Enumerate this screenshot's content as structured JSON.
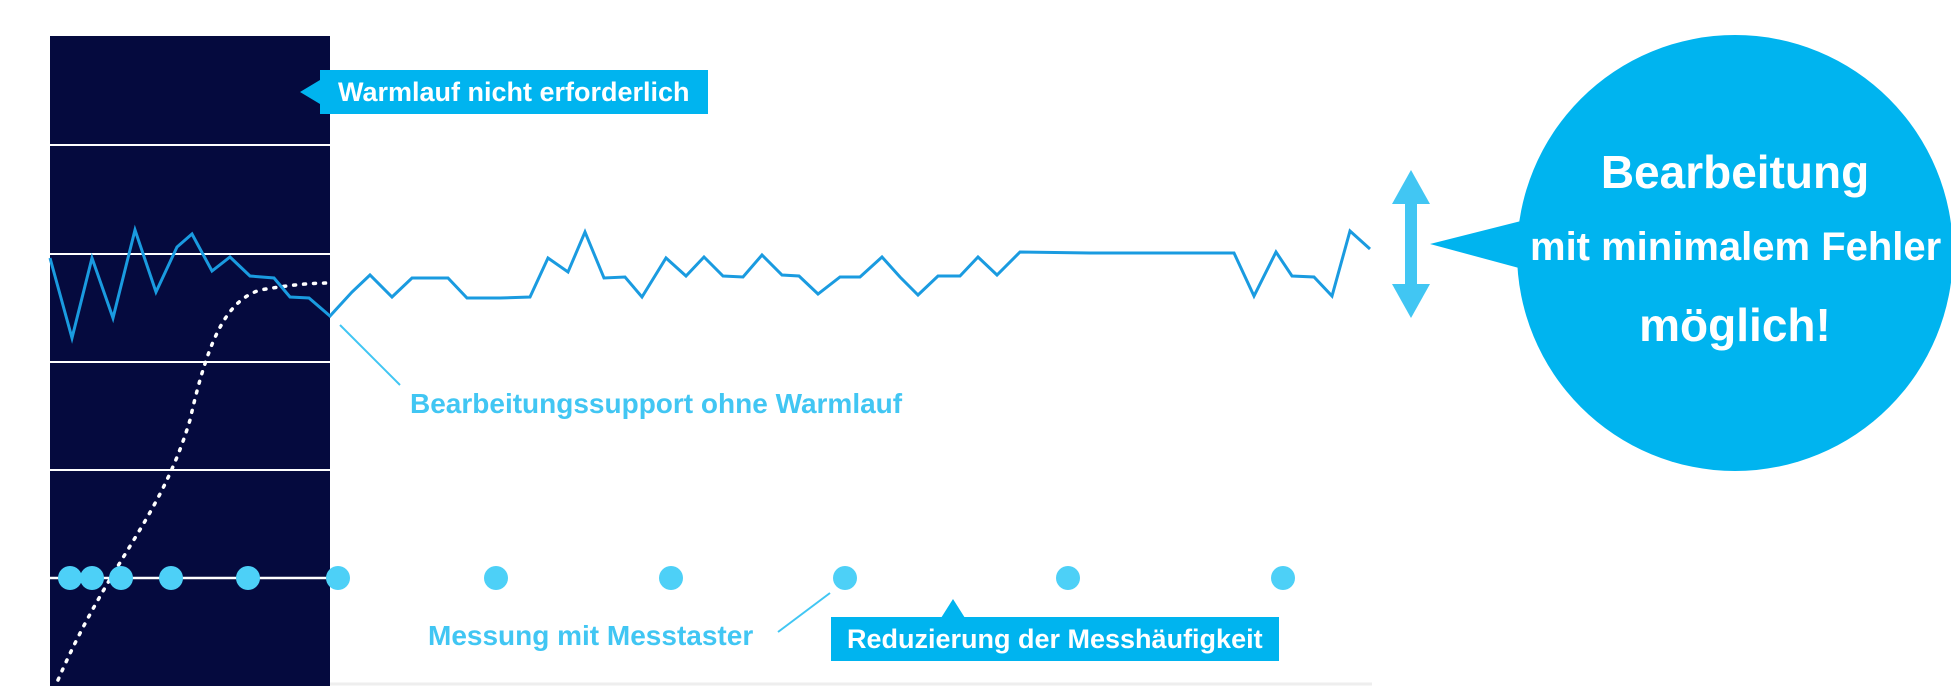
{
  "labels": {
    "warmup_not_required": "Warmlauf nicht erforderlich",
    "support_without_warmup": "Bearbeitungssupport ohne Warmlauf",
    "measurement_probe": "Messung mit Messtaster",
    "reduced_frequency": "Reduzierung der Messhäufigkeit"
  },
  "bubble": {
    "line1": "Bearbeitung",
    "line2": "mit minimalem Fehler",
    "line3": "möglich!"
  },
  "colors": {
    "dark_panel": "#050a3e",
    "accent": "#00b4ef",
    "line": "#1a9be0",
    "dot": "#4dd0f7",
    "caption": "#41c6f3",
    "white": "#ffffff"
  },
  "icons": {
    "arrow": "double-headed-vertical-arrow"
  }
}
